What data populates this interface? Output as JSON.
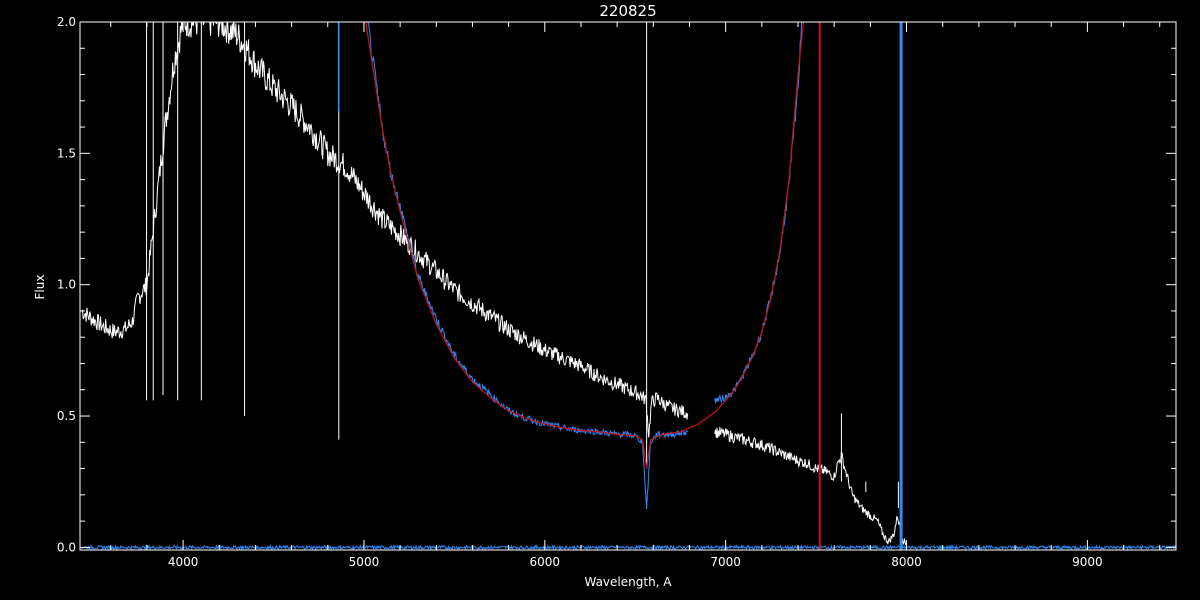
{
  "chart_data": {
    "type": "line",
    "title": "220825",
    "xlabel": "Wavelength, A",
    "ylabel": "Flux",
    "xlim": [
      3430,
      9490
    ],
    "ylim": [
      -0.01,
      2.0
    ],
    "x_ticks": [
      "4000",
      "5000",
      "6000",
      "7000",
      "8000",
      "9000"
    ],
    "y_ticks": [
      "0.0",
      "0.5",
      "1.0",
      "1.5",
      "2.0"
    ],
    "grid": false,
    "background": "#000000",
    "series": [
      {
        "role": "observed-spectrum",
        "color": "#ffffff",
        "segments": [
          [
            [
              3440,
              0.9
            ],
            [
              3500,
              0.87
            ],
            [
              3560,
              0.84
            ],
            [
              3620,
              0.82
            ],
            [
              3680,
              0.83
            ],
            [
              3720,
              0.86
            ],
            [
              3750,
              0.95
            ],
            [
              3800,
              1.0
            ],
            [
              3850,
              1.3
            ],
            [
              3900,
              1.6
            ],
            [
              3950,
              1.85
            ],
            [
              4000,
              2.0
            ],
            [
              4100,
              2.0
            ],
            [
              4200,
              2.0
            ],
            [
              4300,
              1.95
            ],
            [
              4350,
              1.9
            ],
            [
              4400,
              1.84
            ],
            [
              4500,
              1.75
            ],
            [
              4600,
              1.68
            ],
            [
              4700,
              1.6
            ],
            [
              4800,
              1.5
            ],
            [
              4900,
              1.45
            ],
            [
              5000,
              1.35
            ],
            [
              5100,
              1.25
            ],
            [
              5200,
              1.19
            ],
            [
              5300,
              1.12
            ],
            [
              5400,
              1.05
            ],
            [
              5500,
              0.98
            ],
            [
              5600,
              0.93
            ],
            [
              5700,
              0.88
            ],
            [
              5800,
              0.83
            ],
            [
              5900,
              0.79
            ],
            [
              6000,
              0.75
            ],
            [
              6100,
              0.72
            ],
            [
              6200,
              0.69
            ],
            [
              6300,
              0.65
            ],
            [
              6400,
              0.62
            ],
            [
              6500,
              0.59
            ],
            [
              6530,
              0.58
            ],
            [
              6560,
              0.56
            ],
            [
              6575,
              0.43
            ],
            [
              6590,
              0.55
            ],
            [
              6620,
              0.57
            ],
            [
              6650,
              0.55
            ],
            [
              6700,
              0.53
            ],
            [
              6750,
              0.52
            ],
            [
              6790,
              0.51
            ]
          ],
          [
            [
              6940,
              0.44
            ],
            [
              7000,
              0.43
            ],
            [
              7100,
              0.41
            ],
            [
              7200,
              0.39
            ],
            [
              7300,
              0.36
            ],
            [
              7400,
              0.33
            ],
            [
              7450,
              0.32
            ],
            [
              7500,
              0.3
            ],
            [
              7550,
              0.29
            ],
            [
              7600,
              0.27
            ],
            [
              7620,
              0.32
            ],
            [
              7640,
              0.35
            ],
            [
              7660,
              0.3
            ],
            [
              7700,
              0.2
            ],
            [
              7750,
              0.15
            ],
            [
              7800,
              0.12
            ],
            [
              7840,
              0.1
            ],
            [
              7870,
              0.05
            ],
            [
              7900,
              0.02
            ],
            [
              7930,
              0.05
            ],
            [
              7950,
              0.12
            ],
            [
              7980,
              0.03
            ],
            [
              8000,
              0.01
            ]
          ]
        ],
        "absorption_lines": [
          {
            "x": 3798,
            "to": 0.56
          },
          {
            "x": 3835,
            "to": 0.56
          },
          {
            "x": 3889,
            "to": 0.58
          },
          {
            "x": 3970,
            "to": 0.56
          },
          {
            "x": 4101,
            "to": 0.56
          },
          {
            "x": 4340,
            "to": 0.5
          },
          {
            "x": 4861,
            "to": 0.41
          },
          {
            "x": 6563,
            "to": 0.3
          }
        ],
        "emission_lines": [
          {
            "x": 7640,
            "to": 0.51
          },
          {
            "x": 7775,
            "to": 0.21
          },
          {
            "x": 7955,
            "to": 0.15
          }
        ]
      },
      {
        "role": "fit-spectrum",
        "color": "#2a8cff",
        "segments": [
          [
            [
              3440,
              0.0
            ],
            [
              4800,
              0.0
            ],
            [
              5000,
              0.0
            ],
            [
              7000,
              0.0
            ],
            [
              7500,
              0.0
            ],
            [
              7900,
              0.0
            ],
            [
              8100,
              0.0
            ],
            [
              9490,
              0.0
            ]
          ],
          [
            [
              5020,
              2.0
            ],
            [
              5060,
              1.8
            ],
            [
              5100,
              1.6
            ],
            [
              5150,
              1.42
            ],
            [
              5200,
              1.3
            ],
            [
              5250,
              1.16
            ],
            [
              5300,
              1.03
            ],
            [
              5400,
              0.87
            ],
            [
              5500,
              0.73
            ],
            [
              5600,
              0.64
            ],
            [
              5700,
              0.58
            ],
            [
              5800,
              0.52
            ],
            [
              5900,
              0.49
            ],
            [
              6000,
              0.47
            ],
            [
              6100,
              0.455
            ],
            [
              6200,
              0.445
            ],
            [
              6300,
              0.44
            ],
            [
              6400,
              0.43
            ],
            [
              6450,
              0.43
            ],
            [
              6500,
              0.425
            ],
            [
              6540,
              0.4
            ],
            [
              6563,
              0.15
            ],
            [
              6585,
              0.4
            ],
            [
              6620,
              0.43
            ],
            [
              6700,
              0.43
            ],
            [
              6790,
              0.44
            ]
          ],
          [
            [
              6940,
              0.56
            ],
            [
              7000,
              0.57
            ],
            [
              7050,
              0.6
            ],
            [
              7100,
              0.66
            ],
            [
              7150,
              0.73
            ],
            [
              7200,
              0.82
            ],
            [
              7250,
              0.95
            ],
            [
              7300,
              1.12
            ],
            [
              7350,
              1.38
            ],
            [
              7400,
              1.75
            ],
            [
              7420,
              2.0
            ]
          ]
        ],
        "spikes": [
          {
            "x": 4860,
            "from": 2.0,
            "to": 1.66
          }
        ],
        "markers": [
          {
            "x": 7970
          }
        ]
      },
      {
        "role": "model-curve",
        "color": "#cc1111",
        "segments": [
          [
            [
              5010,
              2.0
            ],
            [
              5060,
              1.78
            ],
            [
              5100,
              1.6
            ],
            [
              5150,
              1.42
            ],
            [
              5200,
              1.28
            ],
            [
              5300,
              1.02
            ],
            [
              5400,
              0.85
            ],
            [
              5500,
              0.72
            ],
            [
              5600,
              0.63
            ],
            [
              5700,
              0.57
            ],
            [
              5800,
              0.52
            ],
            [
              5900,
              0.49
            ],
            [
              6000,
              0.47
            ],
            [
              6100,
              0.455
            ],
            [
              6200,
              0.445
            ],
            [
              6300,
              0.44
            ],
            [
              6400,
              0.43
            ],
            [
              6500,
              0.425
            ],
            [
              6540,
              0.41
            ],
            [
              6563,
              0.3
            ],
            [
              6585,
              0.41
            ],
            [
              6650,
              0.43
            ],
            [
              6750,
              0.44
            ],
            [
              6850,
              0.47
            ],
            [
              6950,
              0.52
            ],
            [
              7000,
              0.56
            ],
            [
              7050,
              0.6
            ],
            [
              7100,
              0.66
            ],
            [
              7150,
              0.73
            ],
            [
              7200,
              0.82
            ],
            [
              7250,
              0.95
            ],
            [
              7300,
              1.13
            ],
            [
              7350,
              1.4
            ],
            [
              7400,
              1.8
            ],
            [
              7430,
              2.0
            ]
          ]
        ],
        "markers": [
          {
            "x": 7520
          }
        ]
      }
    ]
  }
}
